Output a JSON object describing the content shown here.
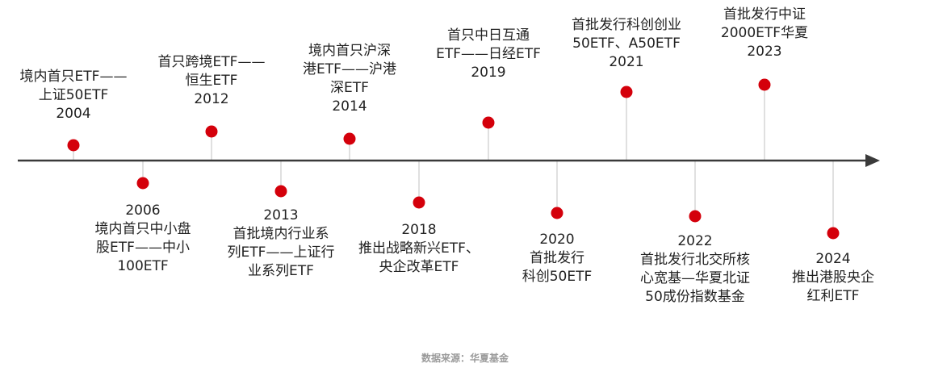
{
  "colors": {
    "axis": "#3a3a3a",
    "dot": "#d4000b",
    "stem": "#cccccc"
  },
  "events": [
    {
      "year": "2004",
      "desc": [
        "境内首只ETF——",
        "上证50ETF"
      ],
      "side": "above"
    },
    {
      "year": "2006",
      "desc": [
        "境内首只中小盘",
        "股ETF——中小",
        "100ETF"
      ],
      "side": "below"
    },
    {
      "year": "2012",
      "desc": [
        "首只跨境ETF——",
        "恒生ETF"
      ],
      "side": "above"
    },
    {
      "year": "2013",
      "desc": [
        "首批境内行业系",
        "列ETF——上证行",
        "业系列ETF"
      ],
      "side": "below"
    },
    {
      "year": "2014",
      "desc": [
        "境内首只沪深",
        "港ETF——沪港",
        "深ETF"
      ],
      "side": "above"
    },
    {
      "year": "2018",
      "desc": [
        "推出战略新兴ETF、",
        "央企改革ETF"
      ],
      "side": "below"
    },
    {
      "year": "2019",
      "desc": [
        "首只中日互通",
        "ETF——日经ETF"
      ],
      "side": "above"
    },
    {
      "year": "2020",
      "desc": [
        "首批发行",
        "科创50ETF"
      ],
      "side": "below"
    },
    {
      "year": "2021",
      "desc": [
        "首批发行科创创业",
        "50ETF、A50ETF"
      ],
      "side": "above"
    },
    {
      "year": "2022",
      "desc": [
        "首批发行北交所核",
        "心宽基—华夏北证",
        "50成份指数基金"
      ],
      "side": "below"
    },
    {
      "year": "2023",
      "desc": [
        "首批发行中证",
        "2000ETF华夏"
      ],
      "side": "above"
    },
    {
      "year": "2024",
      "desc": [
        "推出港股央企",
        "红利ETF"
      ],
      "side": "below"
    }
  ],
  "source": "数据来源：华夏基金"
}
